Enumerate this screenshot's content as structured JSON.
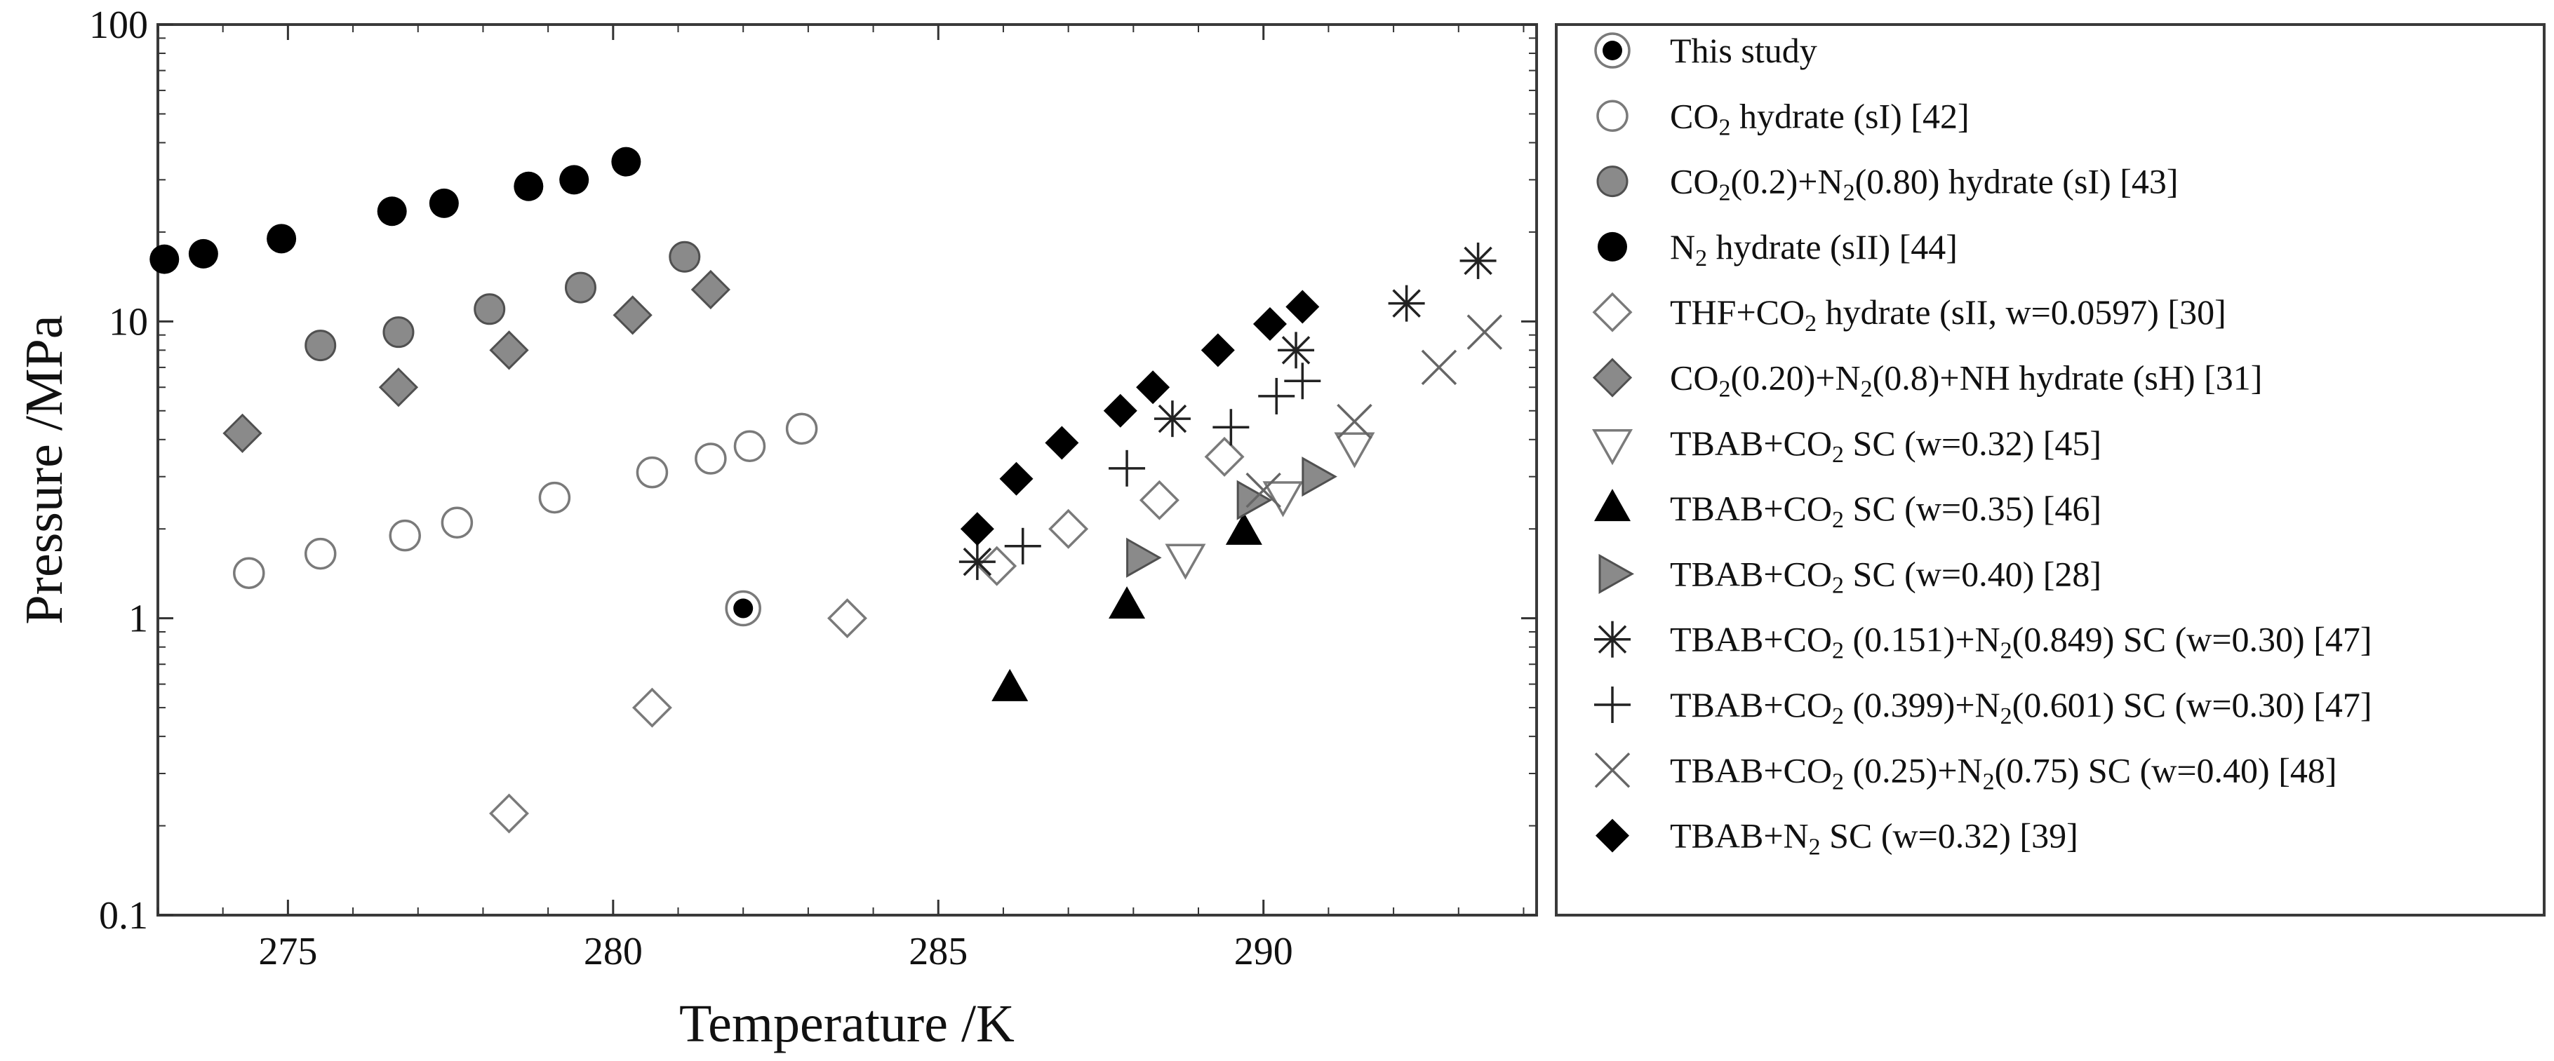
{
  "chart_data": {
    "type": "scatter",
    "xlabel": "Temperature /K",
    "ylabel": "Pressure /MPa",
    "xlim": [
      273,
      294.2
    ],
    "ylim": [
      0.1,
      100
    ],
    "yscale": "log",
    "x_ticks": [
      "275",
      "280",
      "285",
      "290"
    ],
    "x_tick_values": [
      275,
      280,
      285,
      290
    ],
    "y_ticks": [
      "0.1",
      "1",
      "10",
      "100"
    ],
    "y_tick_values": [
      0.1,
      1,
      10,
      100
    ],
    "grid": false,
    "legend_position": "right",
    "series": [
      {
        "marker": "target",
        "label": [
          "This study"
        ],
        "points": [
          [
            282.0,
            1.08
          ]
        ]
      },
      {
        "marker": "circle-open",
        "label": [
          "CO",
          "2",
          " hydrate (sI) [42]"
        ],
        "points": [
          [
            274.4,
            1.42
          ],
          [
            275.5,
            1.65
          ],
          [
            276.8,
            1.9
          ],
          [
            277.6,
            2.1
          ],
          [
            279.1,
            2.55
          ],
          [
            280.6,
            3.1
          ],
          [
            281.5,
            3.45
          ],
          [
            282.1,
            3.8
          ],
          [
            282.9,
            4.35
          ]
        ]
      },
      {
        "marker": "circle-gray",
        "label": [
          "CO",
          "2",
          "(0.2)+N",
          "2",
          "(0.80) hydrate (sI) [43]"
        ],
        "points": [
          [
            275.5,
            8.3
          ],
          [
            276.7,
            9.2
          ],
          [
            278.1,
            11.0
          ],
          [
            279.5,
            13.0
          ],
          [
            281.1,
            16.5
          ]
        ]
      },
      {
        "marker": "circle-black",
        "label": [
          "N",
          "2",
          " hydrate (sII) [44]"
        ],
        "points": [
          [
            273.1,
            16.2
          ],
          [
            273.7,
            16.9
          ],
          [
            274.9,
            19.0
          ],
          [
            276.6,
            23.5
          ],
          [
            277.4,
            25.0
          ],
          [
            278.7,
            28.5
          ],
          [
            279.4,
            30.0
          ],
          [
            280.2,
            34.5
          ]
        ]
      },
      {
        "marker": "diamond-open",
        "label": [
          "THF+CO",
          "2",
          " hydrate (sII, w=0.0597) [30]"
        ],
        "points": [
          [
            278.4,
            0.22
          ],
          [
            280.6,
            0.5
          ],
          [
            283.6,
            1.0
          ],
          [
            285.9,
            1.5
          ],
          [
            287.0,
            2.0
          ],
          [
            288.4,
            2.5
          ],
          [
            289.4,
            3.5
          ]
        ]
      },
      {
        "marker": "diamond-gray",
        "label": [
          "CO",
          "2",
          "(0.20)+N",
          "2",
          "(0.8)+NH hydrate (sH) [31]"
        ],
        "points": [
          [
            274.3,
            4.2
          ],
          [
            276.7,
            6.0
          ],
          [
            278.4,
            8.0
          ],
          [
            280.3,
            10.5
          ],
          [
            281.5,
            12.8
          ]
        ]
      },
      {
        "marker": "triangle-down-open",
        "label": [
          "TBAB+CO",
          "2",
          "  SC (w=0.32) [45]"
        ],
        "points": [
          [
            288.8,
            1.6
          ],
          [
            290.3,
            2.6
          ],
          [
            291.4,
            3.8
          ]
        ]
      },
      {
        "marker": "triangle-up-black",
        "label": [
          "TBAB+CO",
          "2",
          "  SC (w=0.35) [46]"
        ],
        "points": [
          [
            286.1,
            0.58
          ],
          [
            287.9,
            1.1
          ],
          [
            289.7,
            1.95
          ]
        ]
      },
      {
        "marker": "triangle-right-gray",
        "label": [
          "TBAB+CO",
          "2",
          "  SC (w=0.40) [28]"
        ],
        "points": [
          [
            288.1,
            1.6
          ],
          [
            289.8,
            2.5
          ],
          [
            290.8,
            3.0
          ]
        ]
      },
      {
        "marker": "asterisk",
        "label": [
          "TBAB+CO",
          "2",
          "  (0.151)+N",
          "2",
          "(0.849) SC (w=0.30) [47]"
        ],
        "points": [
          [
            285.6,
            1.55
          ],
          [
            288.6,
            4.7
          ],
          [
            290.5,
            8.0
          ],
          [
            292.2,
            11.5
          ],
          [
            293.3,
            16.0
          ]
        ]
      },
      {
        "marker": "plus",
        "label": [
          "TBAB+CO",
          "2",
          "  (0.399)+N",
          "2",
          "(0.601) SC (w=0.30) [47]"
        ],
        "points": [
          [
            286.3,
            1.75
          ],
          [
            287.9,
            3.2
          ],
          [
            289.5,
            4.4
          ],
          [
            290.2,
            5.6
          ],
          [
            290.6,
            6.3
          ]
        ]
      },
      {
        "marker": "cross",
        "label": [
          "TBAB+CO",
          "2",
          "  (0.25)+N",
          "2",
          "(0.75) SC (w=0.40) [48]"
        ],
        "points": [
          [
            290.0,
            2.7
          ],
          [
            291.4,
            4.6
          ],
          [
            292.7,
            7.0
          ],
          [
            293.4,
            9.2
          ]
        ]
      },
      {
        "marker": "diamond-black",
        "label": [
          "TBAB+N",
          "2",
          "  SC (w=0.32) [39]"
        ],
        "points": [
          [
            285.6,
            2.0
          ],
          [
            286.2,
            2.95
          ],
          [
            286.9,
            3.9
          ],
          [
            287.8,
            5.0
          ],
          [
            288.3,
            6.0
          ],
          [
            289.3,
            8.0
          ],
          [
            290.1,
            9.8
          ],
          [
            290.6,
            11.2
          ]
        ]
      }
    ]
  },
  "colors": {
    "black": "#000000",
    "gray": "#8a8a8a",
    "outline": "#505050",
    "open_stroke": "#7a7a7a",
    "frame": "#3a3a3a"
  }
}
